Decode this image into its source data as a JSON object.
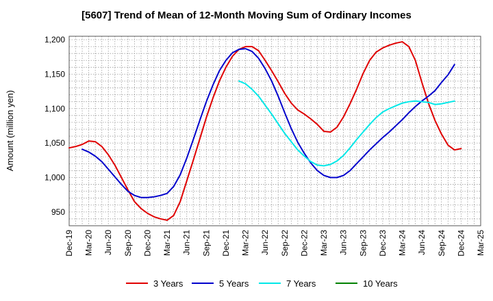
{
  "chart_data": {
    "type": "line",
    "title": "[5607]  Trend of Mean of 12-Month Moving Sum of Ordinary Incomes",
    "xlabel": "",
    "ylabel": "Amount (million yen)",
    "ylim": [
      930,
      1205
    ],
    "yticks": [
      950,
      1000,
      1050,
      1100,
      1150,
      1200
    ],
    "ytick_labels": [
      "950",
      "1,000",
      "1,050",
      "1,100",
      "1,150",
      "1,200"
    ],
    "x_tick_labels": [
      "Dec-19",
      "Mar-20",
      "Jun-20",
      "Sep-20",
      "Dec-20",
      "Mar-21",
      "Jun-21",
      "Sep-21",
      "Dec-21",
      "Mar-22",
      "Jun-22",
      "Sep-22",
      "Dec-22",
      "Mar-23",
      "Jun-23",
      "Sep-23",
      "Dec-23",
      "Mar-24",
      "Jun-24",
      "Sep-24",
      "Dec-24",
      "Mar-25"
    ],
    "x_month_index_range": [
      0,
      63
    ],
    "grid": true,
    "series": [
      {
        "name": "3 Years",
        "color": "#e00000",
        "start_index": 0,
        "values": [
          1043,
          1045,
          1048,
          1053,
          1052,
          1045,
          1033,
          1018,
          1000,
          982,
          965,
          955,
          948,
          943,
          940,
          938,
          945,
          965,
          995,
          1025,
          1056,
          1087,
          1115,
          1140,
          1160,
          1176,
          1186,
          1190,
          1190,
          1184,
          1170,
          1155,
          1139,
          1122,
          1108,
          1098,
          1092,
          1085,
          1077,
          1067,
          1066,
          1073,
          1088,
          1107,
          1128,
          1151,
          1170,
          1182,
          1188,
          1192,
          1195,
          1197,
          1190,
          1170,
          1138,
          1108,
          1083,
          1063,
          1047,
          1040,
          1042
        ]
      },
      {
        "name": "5 Years",
        "color": "#0000cc",
        "start_index": 2,
        "values": [
          1041,
          1037,
          1031,
          1023,
          1012,
          1001,
          990,
          980,
          974,
          971,
          971,
          972,
          974,
          977,
          987,
          1004,
          1028,
          1055,
          1083,
          1110,
          1134,
          1155,
          1170,
          1181,
          1186,
          1187,
          1183,
          1173,
          1158,
          1140,
          1118,
          1094,
          1071,
          1051,
          1035,
          1021,
          1010,
          1003,
          1000,
          1000,
          1003,
          1010,
          1020,
          1030,
          1040,
          1049,
          1058,
          1066,
          1075,
          1084,
          1094,
          1103,
          1111,
          1118,
          1126,
          1138,
          1149,
          1164
        ]
      },
      {
        "name": "7 Years",
        "color": "#00e8e8",
        "start_index": 26,
        "values": [
          1140,
          1136,
          1128,
          1118,
          1105,
          1092,
          1078,
          1064,
          1052,
          1040,
          1031,
          1023,
          1018,
          1017,
          1019,
          1024,
          1032,
          1043,
          1055,
          1066,
          1077,
          1087,
          1095,
          1100,
          1104,
          1108,
          1110,
          1111,
          1110,
          1109,
          1106,
          1107,
          1109,
          1111
        ]
      },
      {
        "name": "10 Years",
        "color": "#008000",
        "start_index": 0,
        "values": []
      }
    ],
    "legend": {
      "placement": "bottom-center",
      "items": [
        {
          "label": "3 Years",
          "color": "#e00000"
        },
        {
          "label": "5 Years",
          "color": "#0000cc"
        },
        {
          "label": "7 Years",
          "color": "#00e8e8"
        },
        {
          "label": "10 Years",
          "color": "#008000"
        }
      ]
    }
  }
}
